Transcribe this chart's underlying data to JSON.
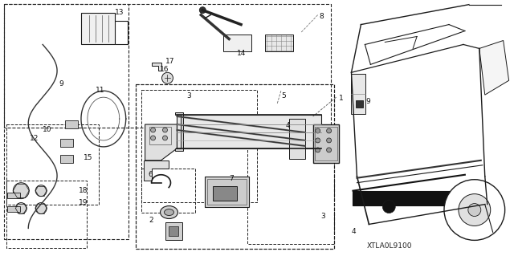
{
  "bg_color": "#ffffff",
  "diagram_code": "XTLA0L9100",
  "line_color": "#1a1a1a",
  "label_fontsize": 6.5,
  "code_fontsize": 6.5,
  "figw": 6.4,
  "figh": 3.19,
  "dpi": 100
}
